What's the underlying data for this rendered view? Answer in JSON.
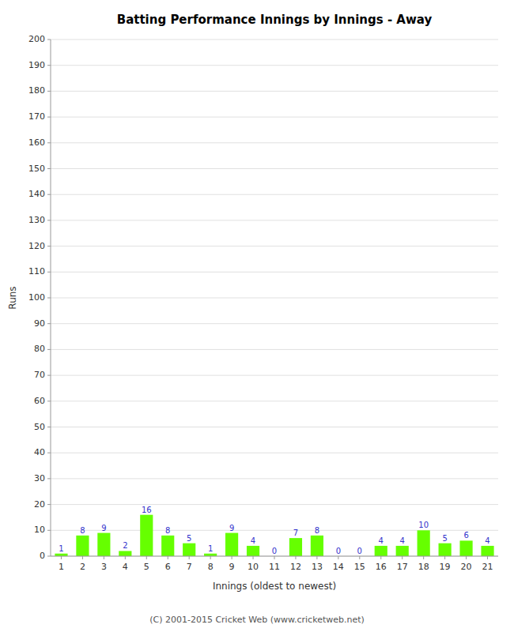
{
  "chart_data": {
    "type": "bar",
    "title": "Batting Performance Innings by Innings - Away",
    "xlabel": "Innings (oldest to newest)",
    "ylabel": "Runs",
    "categories": [
      1,
      2,
      3,
      4,
      5,
      6,
      7,
      8,
      9,
      10,
      11,
      12,
      13,
      14,
      15,
      16,
      17,
      18,
      19,
      20,
      21
    ],
    "values": [
      1,
      8,
      9,
      2,
      16,
      8,
      5,
      1,
      9,
      4,
      0,
      7,
      8,
      0,
      0,
      4,
      4,
      10,
      5,
      6,
      4
    ],
    "color": "#66ff00",
    "ylim": [
      0,
      200
    ],
    "yticks": [
      0,
      10,
      20,
      30,
      40,
      50,
      60,
      70,
      80,
      90,
      100,
      110,
      120,
      130,
      140,
      150,
      160,
      170,
      180,
      190,
      200
    ],
    "grid": true,
    "data_labels": true,
    "footer": "(C) 2001-2015 Cricket Web (www.cricketweb.net)"
  }
}
